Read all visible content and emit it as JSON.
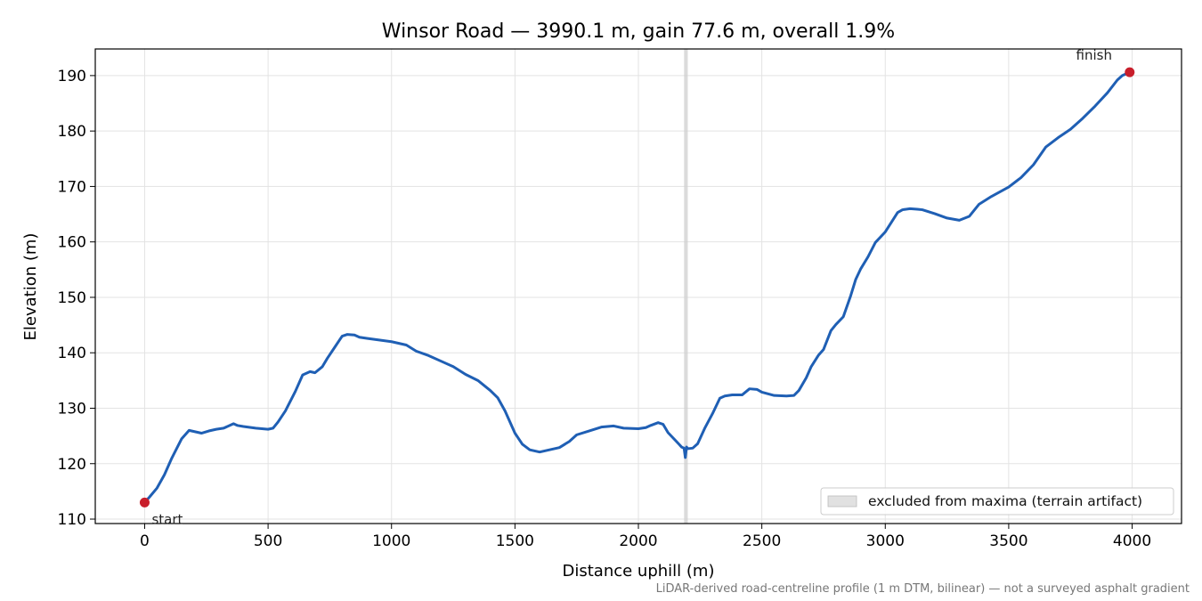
{
  "chart_data": {
    "type": "line",
    "title": "Winsor Road — 3990.1 m, gain 77.6 m, overall 1.9%",
    "xlabel": "Distance uphill (m)",
    "ylabel": "Elevation (m)",
    "xlim": [
      -200,
      4200
    ],
    "ylim": [
      109.2,
      194.8
    ],
    "xticks": [
      0,
      500,
      1000,
      1500,
      2000,
      2500,
      3000,
      3500,
      4000
    ],
    "yticks": [
      110,
      120,
      130,
      140,
      150,
      160,
      170,
      180,
      190
    ],
    "grid": true,
    "line_color": "#1f5fb4",
    "marker_color": "#c81e2b",
    "series": [
      {
        "x": [
          0,
          20,
          50,
          80,
          110,
          150,
          180,
          200,
          230,
          260,
          290,
          320,
          360,
          375,
          400,
          450,
          500,
          520,
          540,
          570,
          610,
          640,
          670,
          690,
          720,
          740,
          770,
          800,
          820,
          850,
          870,
          900,
          950,
          1000,
          1040,
          1060,
          1100,
          1150,
          1200,
          1250,
          1300,
          1350,
          1400,
          1430,
          1460,
          1500,
          1530,
          1560,
          1600,
          1640,
          1680,
          1720,
          1750,
          1800,
          1850,
          1900,
          1940,
          2000,
          2030,
          2050,
          2080,
          2100,
          2120,
          2150,
          2175,
          2185,
          2190,
          2195,
          2200,
          2220,
          2240,
          2270,
          2300,
          2330,
          2350,
          2380,
          2420,
          2450,
          2480,
          2500,
          2550,
          2600,
          2630,
          2650,
          2680,
          2700,
          2730,
          2750,
          2780,
          2800,
          2830,
          2860,
          2880,
          2900,
          2930,
          2960,
          3000,
          3050,
          3070,
          3100,
          3130,
          3150,
          3200,
          3250,
          3300,
          3340,
          3380,
          3430,
          3500,
          3550,
          3600,
          3650,
          3700,
          3750,
          3800,
          3850,
          3900,
          3940,
          3960,
          3980,
          3990
        ],
        "y": [
          113,
          114,
          115.6,
          118,
          121,
          124.5,
          126,
          125.8,
          125.5,
          125.9,
          126.2,
          126.4,
          127.2,
          126.9,
          126.7,
          126.4,
          126.2,
          126.4,
          127.5,
          129.5,
          133,
          136,
          136.6,
          136.4,
          137.5,
          139,
          141,
          143,
          143.3,
          143.2,
          142.8,
          142.6,
          142.3,
          142,
          141.6,
          141.4,
          140.3,
          139.5,
          138.5,
          137.5,
          136.1,
          135,
          133.2,
          131.9,
          129.5,
          125.5,
          123.5,
          122.5,
          122.1,
          122.5,
          122.9,
          124,
          125.2,
          125.9,
          126.6,
          126.8,
          126.4,
          126.3,
          126.5,
          126.9,
          127.4,
          127.1,
          125.6,
          124.2,
          123,
          122.8,
          121.1,
          123,
          122.7,
          122.8,
          123.6,
          126.5,
          129,
          131.8,
          132.2,
          132.4,
          132.4,
          133.5,
          133.4,
          132.9,
          132.3,
          132.2,
          132.3,
          133.2,
          135.5,
          137.5,
          139.6,
          140.6,
          144,
          145.1,
          146.5,
          150.3,
          153.2,
          155.1,
          157.3,
          159.9,
          161.8,
          165.3,
          165.8,
          166,
          165.9,
          165.8,
          165.1,
          164.3,
          163.9,
          164.6,
          166.8,
          168.2,
          169.9,
          171.6,
          173.9,
          177.1,
          178.8,
          180.3,
          182.3,
          184.5,
          186.9,
          189.2,
          190,
          190.4,
          190.6
        ]
      }
    ],
    "highlights": [
      {
        "x": [
          2185,
          2200
        ],
        "label": "excluded from maxima (terrain artifact)"
      }
    ],
    "annotations": [
      {
        "label": "start",
        "x": 0,
        "y": 113
      },
      {
        "label": "finish",
        "x": 3990,
        "y": 190.6
      }
    ],
    "legend": {
      "placement": "lower-right",
      "entries": [
        "excluded from maxima (terrain artifact)"
      ]
    },
    "footnote": "LiDAR-derived road-centreline profile (1 m DTM, bilinear) — not a surveyed asphalt gradient"
  }
}
